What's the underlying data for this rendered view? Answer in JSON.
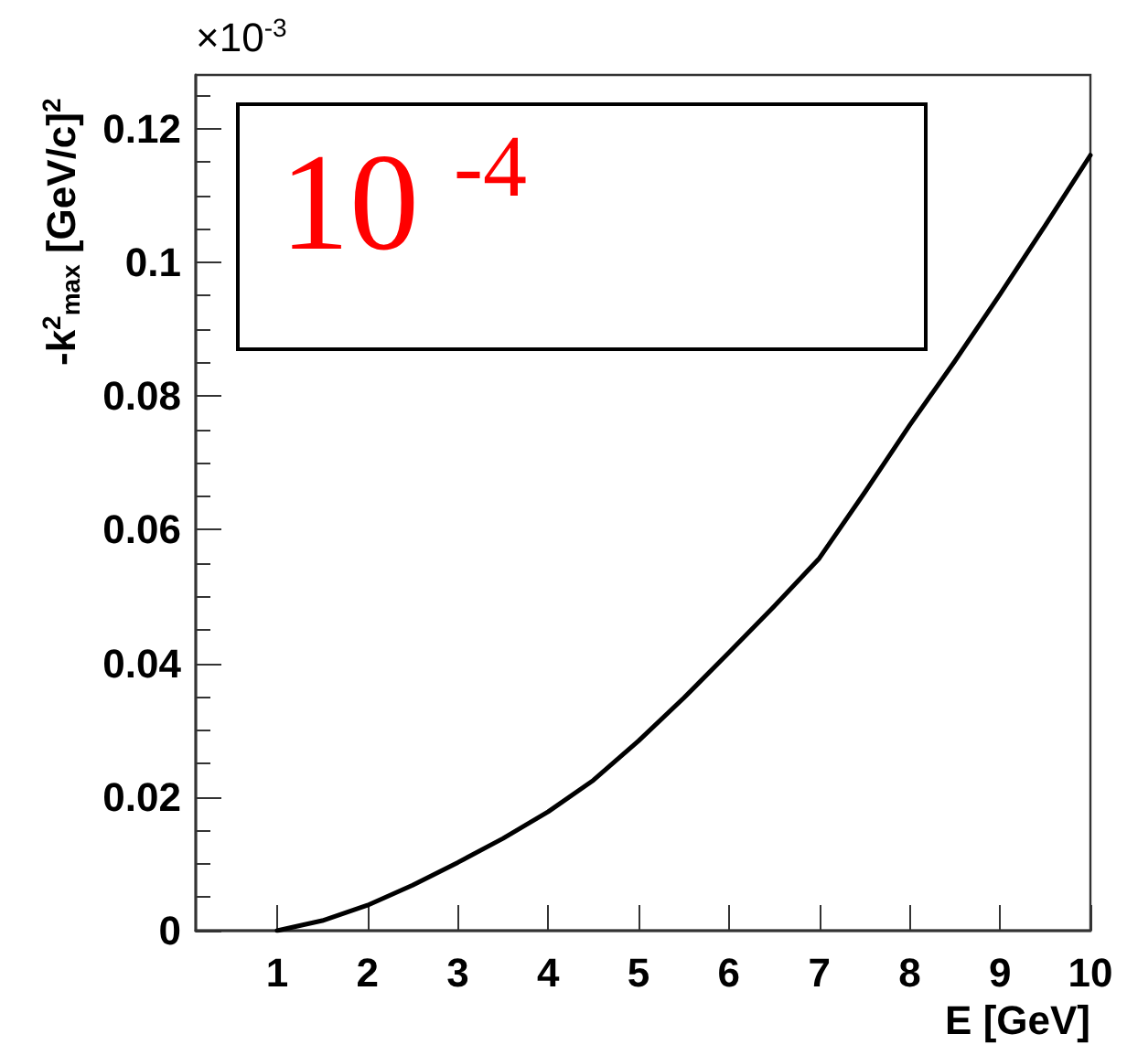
{
  "chart_data": {
    "type": "line",
    "xlabel": "E [GeV]",
    "ylabel": "-k$^{2}$$_{max}$ [GeV/c]$^{2}$",
    "annotations": [
      "×10$^{-3}$",
      "10 $^{-4}$"
    ],
    "x": [
      1,
      1.5,
      2,
      2.5,
      3,
      3.5,
      4,
      4.5,
      5,
      5.5,
      6,
      6.5,
      7,
      7.5,
      8,
      8.5,
      9,
      9.5,
      10
    ],
    "series": [
      {
        "color": "#000000",
        "values": [
          0,
          0.0015,
          0.0038,
          0.0068,
          0.0102,
          0.0138,
          0.0178,
          0.0225,
          0.0284,
          0.0348,
          0.0416,
          0.0485,
          0.0557,
          0.0655,
          0.0756,
          0.0852,
          0.0952,
          0.1055,
          0.116
        ]
      }
    ],
    "xlim": [
      0.1,
      10
    ],
    "xticks": [
      1,
      2,
      3,
      4,
      5,
      6,
      7,
      8,
      9,
      10
    ],
    "ylim": [
      0,
      0.128
    ],
    "yticks": [
      0,
      0.02,
      0.04,
      0.06,
      0.08,
      0.1,
      0.12
    ],
    "grid": false,
    "marker": "none",
    "line_style": "solid"
  }
}
